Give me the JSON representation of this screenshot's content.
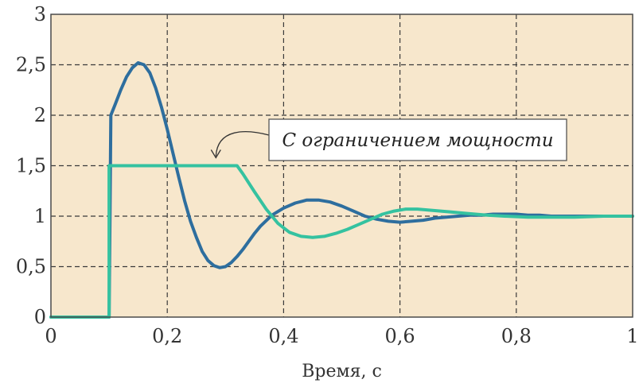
{
  "chart_data": {
    "type": "line",
    "xlabel": "Время, с",
    "ylabel": "",
    "title": "",
    "xlim": [
      0,
      1
    ],
    "ylim": [
      0,
      3
    ],
    "x_ticks": [
      0,
      0.2,
      0.4,
      0.6,
      0.8,
      1
    ],
    "x_tick_labels": [
      "0",
      "0,2",
      "0,4",
      "0,6",
      "0,8",
      "1"
    ],
    "y_ticks": [
      0,
      0.5,
      1,
      1.5,
      2,
      2.5,
      3
    ],
    "y_tick_labels": [
      "0",
      "0,5",
      "1",
      "1,5",
      "2",
      "2,5",
      "3"
    ],
    "grid": true,
    "grid_style": "dashed",
    "background_color": "#f7e7cc",
    "annotation": {
      "text": "С ограничением мощности",
      "points_to": [
        0.3,
        1.5
      ]
    },
    "series": [
      {
        "color": "#2e6e9e",
        "x": [
          0,
          0.1,
          0.1,
          0.103,
          0.11,
          0.12,
          0.13,
          0.14,
          0.15,
          0.16,
          0.17,
          0.18,
          0.19,
          0.2,
          0.21,
          0.22,
          0.23,
          0.24,
          0.25,
          0.26,
          0.27,
          0.28,
          0.29,
          0.3,
          0.31,
          0.32,
          0.33,
          0.34,
          0.35,
          0.36,
          0.38,
          0.4,
          0.42,
          0.44,
          0.46,
          0.48,
          0.5,
          0.52,
          0.54,
          0.56,
          0.58,
          0.6,
          0.62,
          0.64,
          0.66,
          0.68,
          0.7,
          0.72,
          0.74,
          0.76,
          0.78,
          0.8,
          0.82,
          0.84,
          0.86,
          0.88,
          0.9,
          0.95,
          1
        ],
        "y": [
          0,
          0,
          0,
          2.0,
          2.1,
          2.25,
          2.38,
          2.47,
          2.52,
          2.5,
          2.42,
          2.27,
          2.08,
          1.86,
          1.62,
          1.38,
          1.15,
          0.95,
          0.79,
          0.65,
          0.56,
          0.51,
          0.49,
          0.5,
          0.54,
          0.6,
          0.67,
          0.75,
          0.83,
          0.9,
          1.01,
          1.08,
          1.13,
          1.16,
          1.16,
          1.14,
          1.1,
          1.05,
          1.0,
          0.97,
          0.95,
          0.94,
          0.95,
          0.96,
          0.98,
          0.99,
          1.0,
          1.01,
          1.01,
          1.02,
          1.02,
          1.02,
          1.01,
          1.01,
          1.0,
          1.0,
          1.0,
          1.0,
          1.0
        ]
      },
      {
        "color": "#35c2a0",
        "x": [
          0,
          0.1,
          0.1,
          0.32,
          0.33,
          0.35,
          0.37,
          0.39,
          0.41,
          0.43,
          0.45,
          0.47,
          0.49,
          0.51,
          0.53,
          0.55,
          0.57,
          0.59,
          0.61,
          0.63,
          0.65,
          0.67,
          0.69,
          0.71,
          0.73,
          0.75,
          0.78,
          0.82,
          0.86,
          0.9,
          0.95,
          1
        ],
        "y": [
          0,
          0,
          1.5,
          1.5,
          1.42,
          1.24,
          1.07,
          0.93,
          0.84,
          0.8,
          0.79,
          0.8,
          0.83,
          0.87,
          0.92,
          0.97,
          1.02,
          1.05,
          1.07,
          1.07,
          1.06,
          1.05,
          1.04,
          1.03,
          1.02,
          1.01,
          1.0,
          0.99,
          0.99,
          0.99,
          1.0,
          1.0
        ]
      }
    ]
  }
}
